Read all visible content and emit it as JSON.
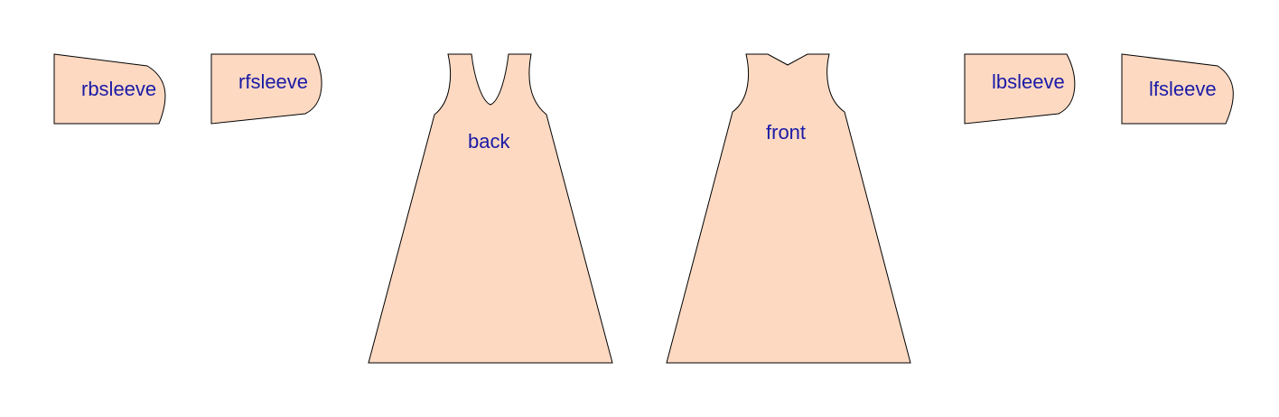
{
  "colors": {
    "piece_fill": "#fdd9c2",
    "piece_stroke": "#000000",
    "label_color": "#1a1aa6",
    "background": "#ffffff"
  },
  "pieces": {
    "rbsleeve": {
      "label": "rbsleeve"
    },
    "rfsleeve": {
      "label": "rfsleeve"
    },
    "back": {
      "label": "back"
    },
    "front": {
      "label": "front"
    },
    "lbsleeve": {
      "label": "lbsleeve"
    },
    "lfsleeve": {
      "label": "lfsleeve"
    }
  }
}
